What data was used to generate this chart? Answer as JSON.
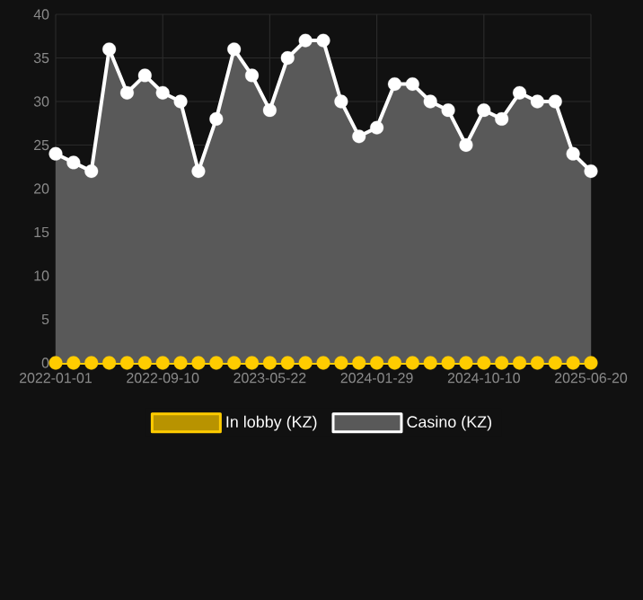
{
  "chart_data": {
    "type": "area",
    "categories": [
      "2022-01-01",
      null,
      null,
      null,
      null,
      null,
      "2022-09-10",
      null,
      null,
      null,
      null,
      null,
      "2023-05-22",
      null,
      null,
      null,
      null,
      null,
      "2024-01-29",
      null,
      null,
      null,
      null,
      null,
      "2024-10-10",
      null,
      null,
      null,
      null,
      null,
      "2025-06-20"
    ],
    "series": [
      {
        "name": "In lobby (KZ)",
        "type": "line",
        "color": "#ffcc00",
        "values": [
          0,
          0,
          0,
          0,
          0,
          0,
          0,
          0,
          0,
          0,
          0,
          0,
          0,
          0,
          0,
          0,
          0,
          0,
          0,
          0,
          0,
          0,
          0,
          0,
          0,
          0,
          0,
          0,
          0,
          0,
          0
        ]
      },
      {
        "name": "Casino (KZ)",
        "color": "#ffffff",
        "values": [
          24,
          23,
          22,
          36,
          31,
          33,
          31,
          30,
          22,
          28,
          36,
          33,
          29,
          35,
          37,
          37,
          30,
          26,
          27,
          32,
          32,
          30,
          29,
          25,
          29,
          28,
          31,
          30,
          30,
          24,
          22
        ]
      }
    ],
    "ylim": [
      0,
      40
    ],
    "yticks": [
      0,
      5,
      10,
      15,
      20,
      25,
      30,
      35,
      40
    ],
    "grid": true,
    "legend": "bottom",
    "marker": "circle"
  }
}
